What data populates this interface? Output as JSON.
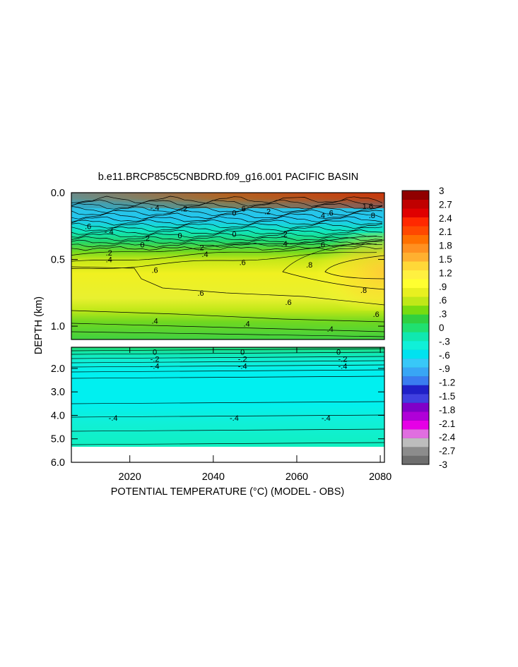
{
  "chart_data": {
    "type": "heatmap",
    "title": "b.e11.BRCP85C5CNBDRD.f09_g16.001 PACIFIC BASIN",
    "xlabel": "POTENTIAL TEMPERATURE (°C) (MODEL - OBS)",
    "ylabel": "DEPTH (km)",
    "x_ticks": [
      "2020",
      "2040",
      "2060",
      "2080"
    ],
    "x_tick_values": [
      2020,
      2040,
      2060,
      2080
    ],
    "xlim": [
      2006,
      2081
    ],
    "upper_panel": {
      "ylim": [
        0.0,
        1.1
      ],
      "y_ticks": [
        "0.0",
        "0.5",
        "1.0"
      ],
      "y_tick_values": [
        0.0,
        0.5,
        1.0
      ]
    },
    "lower_panel": {
      "ylim": [
        1.1,
        6.0
      ],
      "y_ticks": [
        "2.0",
        "3.0",
        "4.0",
        "5.0",
        "6.0"
      ],
      "y_tick_values": [
        2.0,
        3.0,
        4.0,
        5.0,
        6.0
      ]
    },
    "colorbar": {
      "labels": [
        "3",
        "2.7",
        "2.4",
        "2.1",
        "1.8",
        "1.5",
        "1.2",
        ".9",
        ".6",
        ".3",
        "0",
        "-.3",
        "-.6",
        "-.9",
        "-1.2",
        "-1.5",
        "-1.8",
        "-2.1",
        "-2.4",
        "-2.7",
        "-3"
      ],
      "range": [
        -3,
        3
      ],
      "colors": [
        "#6e6e6e",
        "#8c8c8c",
        "#bdbdbd",
        "#e06ee0",
        "#e600e6",
        "#b000d8",
        "#8000c8",
        "#4040e0",
        "#2020c8",
        "#3a7cf0",
        "#38a6f5",
        "#38c8f8",
        "#00e2f0",
        "#10f0d8",
        "#10e8b0",
        "#20e070",
        "#30d040",
        "#78dc10",
        "#c0e818",
        "#e8f020",
        "#ffff30",
        "#fff040",
        "#ffd838",
        "#ffb030",
        "#ff9020",
        "#ff7000",
        "#ff4800",
        "#ff2800",
        "#e00000",
        "#c00000",
        "#900000"
      ]
    },
    "contour_labels": [
      {
        "text": ".6",
        "x": 2010,
        "y": 0.25
      },
      {
        "text": "-.4",
        "x": 2015,
        "y": 0.29
      },
      {
        "text": ".2",
        "x": 2015,
        "y": 0.45
      },
      {
        "text": ".4",
        "x": 2015,
        "y": 0.5
      },
      {
        "text": ".6",
        "x": 2026,
        "y": 0.58
      },
      {
        "text": ".6",
        "x": 2037,
        "y": 0.75
      },
      {
        "text": ".4",
        "x": 2026,
        "y": 0.96
      },
      {
        "text": ".6",
        "x": 2047,
        "y": 0.52
      },
      {
        "text": ".6",
        "x": 2058,
        "y": 0.82
      },
      {
        "text": ".4",
        "x": 2048,
        "y": 0.98
      },
      {
        "text": ".8",
        "x": 2063,
        "y": 0.54
      },
      {
        "text": ".8",
        "x": 2076,
        "y": 0.73
      },
      {
        "text": ".6",
        "x": 2079,
        "y": 0.91
      },
      {
        "text": ".4",
        "x": 2068,
        "y": 1.02
      },
      {
        "text": ".2",
        "x": 2033,
        "y": 0.12
      },
      {
        "text": "0",
        "x": 2032,
        "y": 0.32
      },
      {
        "text": ".2",
        "x": 2037,
        "y": 0.41
      },
      {
        "text": ".4",
        "x": 2038,
        "y": 0.46
      },
      {
        "text": "0",
        "x": 2045,
        "y": 0.31
      },
      {
        "text": ".2",
        "x": 2057,
        "y": 0.31
      },
      {
        "text": ".4",
        "x": 2057,
        "y": 0.38
      },
      {
        "text": ".6",
        "x": 2066,
        "y": 0.39
      },
      {
        "text": ".4",
        "x": 2066,
        "y": 0.17
      },
      {
        "text": ".6",
        "x": 2068,
        "y": 0.15
      },
      {
        "text": ".8",
        "x": 2078,
        "y": 0.17
      },
      {
        "text": "1.6",
        "x": 2077,
        "y": 0.1
      },
      {
        "text": "0",
        "x": 2045,
        "y": 0.15
      },
      {
        "text": ".6",
        "x": 2047,
        "y": 0.12
      },
      {
        "text": ".2",
        "x": 2053,
        "y": 0.14
      },
      {
        "text": "-.4",
        "x": 2026,
        "y": 0.11
      },
      {
        "text": "0",
        "x": 2023,
        "y": 0.39
      },
      {
        "text": ".2",
        "x": 2024,
        "y": 0.34
      },
      {
        "text": "0",
        "x": 2026,
        "y": 1.3
      },
      {
        "text": "-.2",
        "x": 2026,
        "y": 1.6
      },
      {
        "text": "-.4",
        "x": 2026,
        "y": 1.9
      },
      {
        "text": "0",
        "x": 2047,
        "y": 1.3
      },
      {
        "text": "-.2",
        "x": 2047,
        "y": 1.6
      },
      {
        "text": "-.4",
        "x": 2047,
        "y": 1.9
      },
      {
        "text": "0",
        "x": 2070,
        "y": 1.3
      },
      {
        "text": "-.2",
        "x": 2071,
        "y": 1.6
      },
      {
        "text": "-.4",
        "x": 2071,
        "y": 1.9
      },
      {
        "text": "-.4",
        "x": 2016,
        "y": 4.1
      },
      {
        "text": "-.4",
        "x": 2045,
        "y": 4.1
      },
      {
        "text": "-.4",
        "x": 2067,
        "y": 4.1
      }
    ]
  }
}
